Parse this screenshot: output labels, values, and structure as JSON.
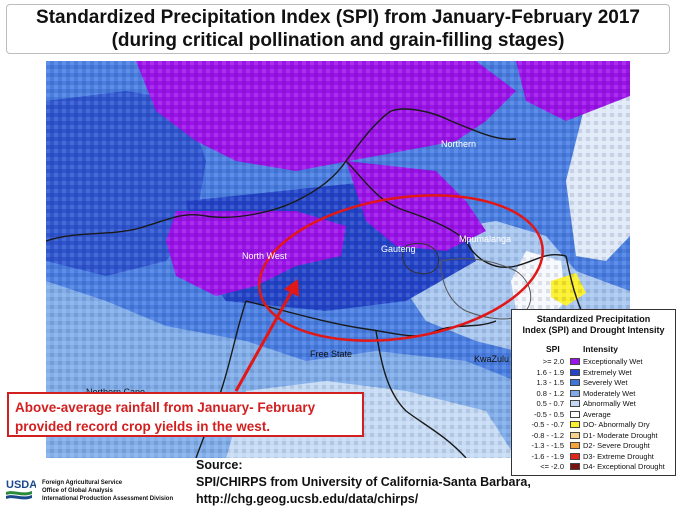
{
  "title": {
    "line1": "Standardized Precipitation Index (SPI) from January-February 2017",
    "line2": "(during critical pollination and grain-filling stages)"
  },
  "map": {
    "regions": {
      "northern": "Northern",
      "north_west": "North West",
      "gauteng": "Gauteng",
      "mpumalanga": "Mpumalanga",
      "free_state": "Free State",
      "kwazulu": "KwaZulu",
      "northern_cape": "Northern Cape"
    },
    "colors": {
      "exceptionally_wet": "#9b13e8",
      "extremely_wet": "#2344c6",
      "severely_wet": "#4a7ee0",
      "moderately_wet": "#82aee9",
      "abnormally_wet": "#c7dcf4",
      "average": "#ffffff",
      "highlight_circle": "#e21717"
    }
  },
  "callout": {
    "line1": "Above-average rainfall from January- February",
    "line2": "provided record crop yields in the west."
  },
  "legend": {
    "title_line1": "Standardized Precipitation",
    "title_line2": "Index (SPI) and Drought Intensity",
    "col_spi": "SPI",
    "col_intensity": "Intensity",
    "rows": [
      {
        "spi": ">= 2.0",
        "label": "Exceptionally Wet",
        "color": "#9b13e8"
      },
      {
        "spi": "1.6 - 1.9",
        "label": "Extremely Wet",
        "color": "#2344c6"
      },
      {
        "spi": "1.3 - 1.5",
        "label": "Severely Wet",
        "color": "#3f74dc"
      },
      {
        "spi": "0.8 - 1.2",
        "label": "Moderately Wet",
        "color": "#7fa9e8"
      },
      {
        "spi": "0.5 - 0.7",
        "label": "Abnormally Wet",
        "color": "#c3d8f3"
      },
      {
        "spi": "-0.5 - 0.5",
        "label": "Average",
        "color": "#ffffff"
      },
      {
        "spi": "-0.5 - -0.7",
        "label": "DO- Abnormally Dry",
        "color": "#fbf02b"
      },
      {
        "spi": "-0.8 - -1.2",
        "label": "D1- Moderate Drought",
        "color": "#f6d38a"
      },
      {
        "spi": "-1.3 - -1.5",
        "label": "D2- Severe Drought",
        "color": "#f5a43c"
      },
      {
        "spi": "-1.6 - -1.9",
        "label": "D3- Extreme Drought",
        "color": "#e2231a"
      },
      {
        "spi": "<= -2.0",
        "label": "D4- Exceptional Drought",
        "color": "#7a1010"
      }
    ]
  },
  "footer": {
    "agency_line1": "Foreign Agricultural Service",
    "agency_line2": "Office of Global Analysis",
    "agency_line3": "International Production Assessment Division",
    "logo_text": "USDA",
    "source_line1": "Source:",
    "source_line2": "SPI/CHIRPS from University of California-Santa Barbara,",
    "source_line3": "http://chg.geog.ucsb.edu/data/chirps/"
  }
}
